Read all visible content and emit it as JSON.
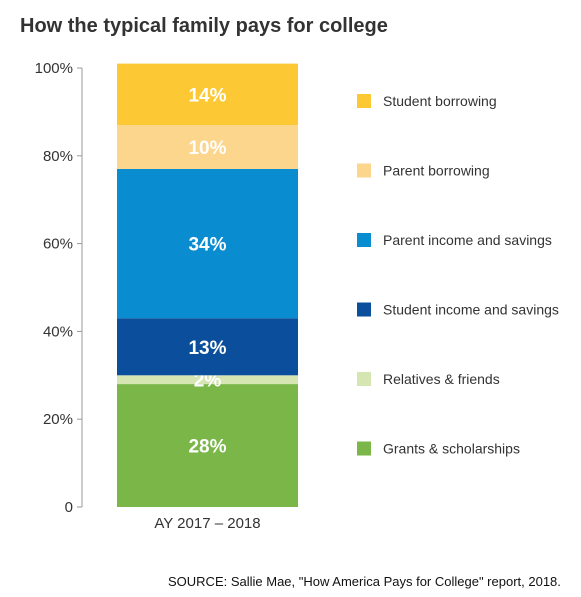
{
  "chart_data": {
    "type": "bar",
    "stacked": true,
    "title": "How the typical family pays for college",
    "categories": [
      "AY 2017 – 2018"
    ],
    "y_ticks": [
      "0",
      "20%",
      "40%",
      "60%",
      "80%",
      "100%"
    ],
    "ylim": [
      0,
      100
    ],
    "grid": false,
    "legend_position": "right",
    "series": [
      {
        "name": "Grants & scholarships",
        "values": [
          28
        ],
        "label": "28%",
        "color": "#7ab648"
      },
      {
        "name": "Relatives & friends",
        "values": [
          2
        ],
        "label": "2%",
        "color": "#d5e6b3"
      },
      {
        "name": "Student income and savings",
        "values": [
          13
        ],
        "label": "13%",
        "color": "#0b4f9c"
      },
      {
        "name": "Parent income and savings",
        "values": [
          34
        ],
        "label": "34%",
        "color": "#0a8cd0"
      },
      {
        "name": "Parent borrowing",
        "values": [
          10
        ],
        "label": "10%",
        "color": "#fbd68c"
      },
      {
        "name": "Student borrowing",
        "values": [
          14
        ],
        "label": "14%",
        "color": "#fcc935"
      }
    ],
    "source": "SOURCE: Sallie Mae, \"How America Pays for College\" report, 2018."
  }
}
